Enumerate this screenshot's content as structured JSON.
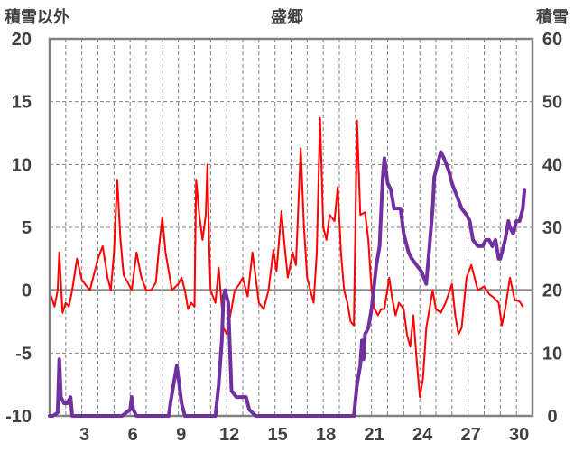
{
  "chart_data": {
    "type": "line",
    "title": "盛郷",
    "left_axis_label": "積雪以外",
    "right_axis_label": "積雪",
    "y_left": {
      "min": -10,
      "max": 20,
      "ticks": [
        20,
        15,
        10,
        5,
        0,
        -5,
        -10
      ]
    },
    "y_right": {
      "min": 0,
      "max": 60,
      "ticks": [
        60,
        50,
        40,
        30,
        20,
        10,
        0
      ]
    },
    "x": {
      "min": 1,
      "max": 31,
      "ticks": [
        3,
        6,
        9,
        12,
        15,
        18,
        21,
        24,
        27,
        30
      ]
    },
    "grid": true,
    "colors": {
      "temperature": "#ff0000",
      "snow_depth": "#7030a0",
      "axis": "#808080",
      "zero_line": "#808080",
      "text": "#404040"
    },
    "series": [
      {
        "axis": "left",
        "color": "#ff0000",
        "points": [
          [
            1.1,
            -0.5
          ],
          [
            1.3,
            -1.3
          ],
          [
            1.5,
            0
          ],
          [
            1.6,
            3
          ],
          [
            1.8,
            -1.8
          ],
          [
            2.0,
            -1.0
          ],
          [
            2.2,
            -1.3
          ],
          [
            2.4,
            0
          ],
          [
            2.7,
            2.5
          ],
          [
            3.0,
            0.8
          ],
          [
            3.5,
            0
          ],
          [
            4.0,
            2.5
          ],
          [
            4.3,
            3.5
          ],
          [
            4.6,
            1.0
          ],
          [
            4.8,
            0
          ],
          [
            5.0,
            3.0
          ],
          [
            5.2,
            8.8
          ],
          [
            5.4,
            4
          ],
          [
            5.6,
            1.2
          ],
          [
            5.9,
            0.5
          ],
          [
            6.1,
            0
          ],
          [
            6.4,
            3.0
          ],
          [
            6.7,
            1.0
          ],
          [
            7.0,
            0
          ],
          [
            7.3,
            0
          ],
          [
            7.6,
            0.6
          ],
          [
            7.8,
            3.5
          ],
          [
            8.0,
            5.8
          ],
          [
            8.2,
            3.0
          ],
          [
            8.4,
            1.5
          ],
          [
            8.6,
            0
          ],
          [
            9.0,
            0.5
          ],
          [
            9.2,
            1.0
          ],
          [
            9.4,
            0
          ],
          [
            9.6,
            -1.5
          ],
          [
            9.8,
            -1.0
          ],
          [
            10.0,
            -1.3
          ],
          [
            10.1,
            8.8
          ],
          [
            10.3,
            6.0
          ],
          [
            10.5,
            4.0
          ],
          [
            10.7,
            6.0
          ],
          [
            10.8,
            10.0
          ],
          [
            10.9,
            4.0
          ],
          [
            11.0,
            0
          ],
          [
            11.3,
            -1.0
          ],
          [
            11.5,
            1.8
          ],
          [
            11.8,
            -3.0
          ],
          [
            12.0,
            -3.5
          ],
          [
            12.3,
            -1.5
          ],
          [
            12.5,
            0
          ],
          [
            12.8,
            0.5
          ],
          [
            13.0,
            1.0
          ],
          [
            13.3,
            -0.5
          ],
          [
            13.6,
            3.0
          ],
          [
            13.8,
            1.0
          ],
          [
            14.0,
            -1.0
          ],
          [
            14.3,
            -1.5
          ],
          [
            14.6,
            0
          ],
          [
            14.9,
            3.2
          ],
          [
            15.1,
            1.5
          ],
          [
            15.4,
            6.3
          ],
          [
            15.6,
            3.5
          ],
          [
            15.8,
            1.0
          ],
          [
            16.1,
            3.0
          ],
          [
            16.3,
            2.0
          ],
          [
            16.6,
            11.3
          ],
          [
            16.8,
            5.0
          ],
          [
            17.0,
            1.0
          ],
          [
            17.2,
            0
          ],
          [
            17.4,
            -1.0
          ],
          [
            17.6,
            3.0
          ],
          [
            17.8,
            13.7
          ],
          [
            18.0,
            5.0
          ],
          [
            18.2,
            4.0
          ],
          [
            18.4,
            6.0
          ],
          [
            18.7,
            5.5
          ],
          [
            18.9,
            8.2
          ],
          [
            19.1,
            3.0
          ],
          [
            19.3,
            0
          ],
          [
            19.5,
            -1.0
          ],
          [
            19.7,
            -2.5
          ],
          [
            19.9,
            -2.8
          ],
          [
            20.1,
            13.5
          ],
          [
            20.3,
            6.0
          ],
          [
            20.6,
            6.2
          ],
          [
            20.8,
            4.0
          ],
          [
            21.0,
            0
          ],
          [
            21.2,
            -1.5
          ],
          [
            21.4,
            -2.0
          ],
          [
            21.6,
            -1.5
          ],
          [
            21.8,
            -1.5
          ],
          [
            22.1,
            1.0
          ],
          [
            22.3,
            -0.8
          ],
          [
            22.5,
            -2.0
          ],
          [
            22.7,
            -1.0
          ],
          [
            23.0,
            -1.5
          ],
          [
            23.2,
            -3.5
          ],
          [
            23.4,
            -4.5
          ],
          [
            23.6,
            -2.0
          ],
          [
            23.8,
            -5.5
          ],
          [
            24.0,
            -8.5
          ],
          [
            24.2,
            -7.0
          ],
          [
            24.4,
            -3.0
          ],
          [
            24.6,
            -1.5
          ],
          [
            24.8,
            0
          ],
          [
            25.0,
            -1.5
          ],
          [
            25.3,
            -1.8
          ],
          [
            25.6,
            -1.0
          ],
          [
            26.0,
            0.5
          ],
          [
            26.2,
            -2.0
          ],
          [
            26.4,
            -3.5
          ],
          [
            26.6,
            -3.0
          ],
          [
            26.9,
            1.0
          ],
          [
            27.2,
            2.0
          ],
          [
            27.6,
            0
          ],
          [
            28.0,
            0.3
          ],
          [
            28.3,
            -0.3
          ],
          [
            28.6,
            -0.6
          ],
          [
            28.9,
            -1.0
          ],
          [
            29.1,
            -2.8
          ],
          [
            29.3,
            -1.5
          ],
          [
            29.6,
            1.0
          ],
          [
            29.9,
            -0.8
          ],
          [
            30.2,
            -0.9
          ],
          [
            30.4,
            -1.3
          ]
        ]
      },
      {
        "axis": "right",
        "color": "#7030a0",
        "points": [
          [
            1.0,
            0
          ],
          [
            1.2,
            0
          ],
          [
            1.5,
            0.5
          ],
          [
            1.6,
            9
          ],
          [
            1.7,
            3
          ],
          [
            1.9,
            2
          ],
          [
            2.1,
            2
          ],
          [
            2.3,
            3
          ],
          [
            2.4,
            0
          ],
          [
            4.0,
            0
          ],
          [
            5.5,
            0
          ],
          [
            6.0,
            1
          ],
          [
            6.1,
            3
          ],
          [
            6.2,
            1
          ],
          [
            6.4,
            0
          ],
          [
            7.0,
            0
          ],
          [
            8.4,
            0
          ],
          [
            8.5,
            2
          ],
          [
            8.7,
            5
          ],
          [
            8.9,
            8
          ],
          [
            9.0,
            6
          ],
          [
            9.2,
            2
          ],
          [
            9.4,
            0
          ],
          [
            9.6,
            0
          ],
          [
            11.3,
            0
          ],
          [
            11.5,
            5
          ],
          [
            11.7,
            12
          ],
          [
            11.8,
            19
          ],
          [
            11.9,
            20
          ],
          [
            12.1,
            18
          ],
          [
            12.3,
            4
          ],
          [
            12.6,
            3
          ],
          [
            13.0,
            3
          ],
          [
            13.2,
            3
          ],
          [
            13.4,
            1
          ],
          [
            13.8,
            0
          ],
          [
            17.0,
            0
          ],
          [
            19.9,
            0
          ],
          [
            20.1,
            5
          ],
          [
            20.3,
            8
          ],
          [
            20.4,
            12
          ],
          [
            20.5,
            9
          ],
          [
            20.6,
            13
          ],
          [
            20.8,
            14
          ],
          [
            21.0,
            17
          ],
          [
            21.3,
            24
          ],
          [
            21.5,
            27
          ],
          [
            21.7,
            38
          ],
          [
            21.8,
            41
          ],
          [
            22.0,
            37
          ],
          [
            22.2,
            36
          ],
          [
            22.4,
            33
          ],
          [
            22.6,
            33
          ],
          [
            22.8,
            33
          ],
          [
            23.0,
            29
          ],
          [
            23.3,
            26
          ],
          [
            23.5,
            25
          ],
          [
            23.8,
            24
          ],
          [
            24.1,
            23
          ],
          [
            24.4,
            21
          ],
          [
            24.5,
            24
          ],
          [
            24.6,
            27
          ],
          [
            24.8,
            33
          ],
          [
            24.9,
            38
          ],
          [
            25.1,
            40
          ],
          [
            25.3,
            42
          ],
          [
            25.5,
            41
          ],
          [
            25.8,
            39
          ],
          [
            26.0,
            37
          ],
          [
            26.3,
            35
          ],
          [
            26.6,
            33
          ],
          [
            26.9,
            32
          ],
          [
            27.1,
            31
          ],
          [
            27.3,
            28
          ],
          [
            27.6,
            27
          ],
          [
            27.9,
            27
          ],
          [
            28.1,
            28
          ],
          [
            28.3,
            28
          ],
          [
            28.5,
            27
          ],
          [
            28.7,
            28
          ],
          [
            28.9,
            25
          ],
          [
            29.0,
            25
          ],
          [
            29.3,
            28
          ],
          [
            29.5,
            31
          ],
          [
            29.6,
            30
          ],
          [
            29.8,
            29
          ],
          [
            30.0,
            31
          ],
          [
            30.2,
            31
          ],
          [
            30.4,
            33
          ],
          [
            30.5,
            36
          ]
        ]
      }
    ]
  }
}
